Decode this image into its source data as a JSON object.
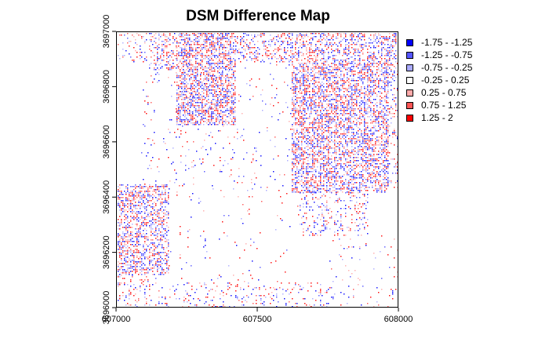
{
  "map": {
    "title": "DSM Difference Map",
    "x_ticks": [
      "607000",
      "607500",
      "608000"
    ],
    "y_ticks": [
      "3696000",
      "3696200",
      "3696400",
      "3696600",
      "3696800",
      "3697000"
    ],
    "x_range": [
      607000,
      608000
    ],
    "y_range": [
      3696000,
      3697000
    ]
  },
  "legend": {
    "items": [
      {
        "label": "-1.75 - -1.25",
        "color": "#0000ff"
      },
      {
        "label": "-1.25 - -0.75",
        "color": "#5555ff"
      },
      {
        "label": "-0.75 - -0.25",
        "color": "#aaaaff"
      },
      {
        "label": "-0.25 - 0.25",
        "color": "#ffffff"
      },
      {
        "label": "0.25 - 0.75",
        "color": "#ffaaaa"
      },
      {
        "label": "0.75 - 1.25",
        "color": "#ff5555"
      },
      {
        "label": "1.25 - 2",
        "color": "#ff0000"
      }
    ]
  }
}
